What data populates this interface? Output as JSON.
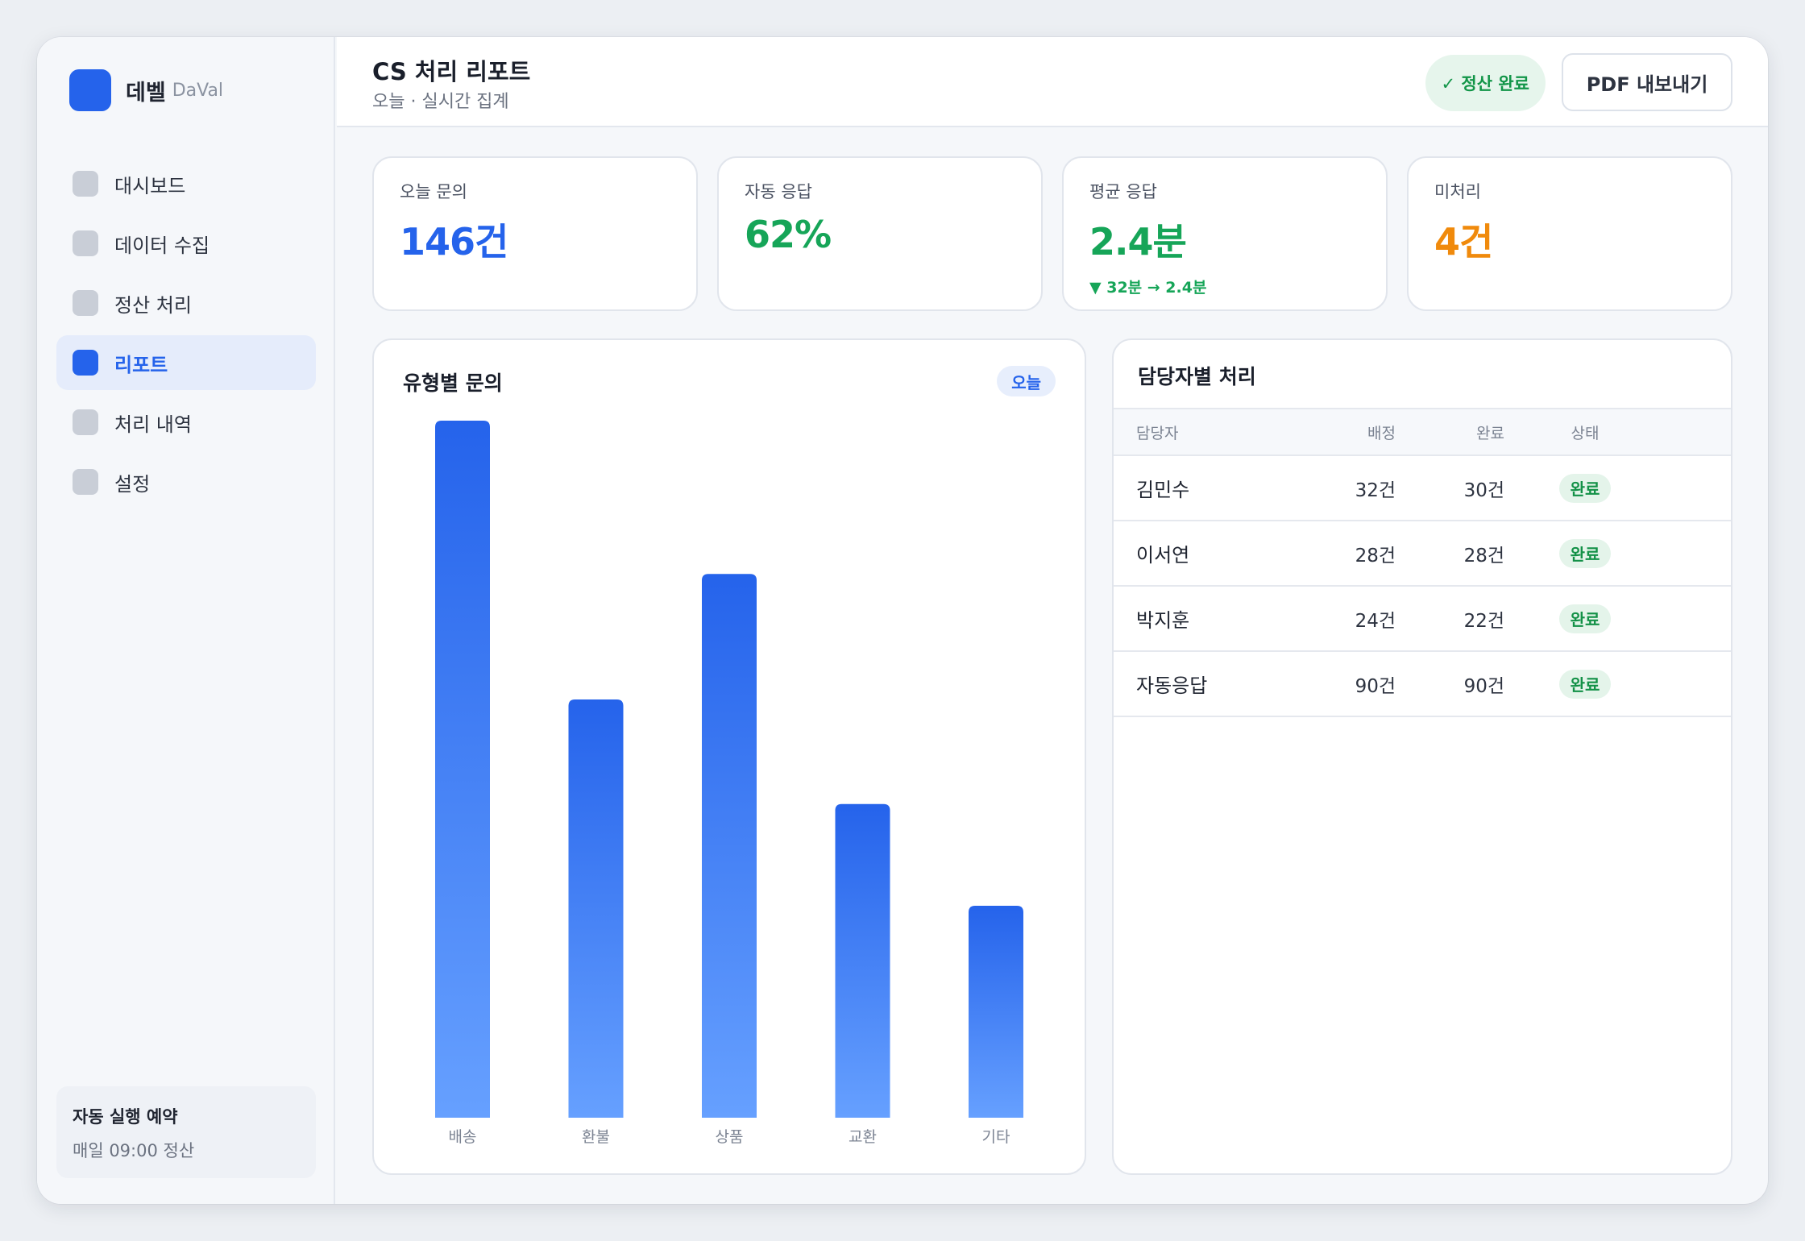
{
  "brand": {
    "name": "데벨",
    "sub": "DaVal"
  },
  "sidebar": {
    "items": [
      {
        "label": "대시보드",
        "active": false
      },
      {
        "label": "데이터 수집",
        "active": false
      },
      {
        "label": "정산 처리",
        "active": false
      },
      {
        "label": "리포트",
        "active": true
      },
      {
        "label": "처리 내역",
        "active": false
      },
      {
        "label": "설정",
        "active": false
      }
    ],
    "schedule": {
      "title": "자동 실행 예약",
      "desc": "매일 09:00 정산"
    }
  },
  "header": {
    "title": "CS 처리 리포트",
    "subtitle": "오늘 · 실시간 집계",
    "status": "✓ 정산 완료",
    "export_label": "PDF 내보내기"
  },
  "kpis": [
    {
      "label": "오늘 문의",
      "value": "146건",
      "color": "#2563eb",
      "delta": ""
    },
    {
      "label": "자동 응답",
      "value": "62%",
      "color": "#16a558",
      "delta": ""
    },
    {
      "label": "평균 응답",
      "value": "2.4분",
      "color": "#16a558",
      "delta": "▼ 32분 → 2.4분"
    },
    {
      "label": "미처리",
      "value": "4건",
      "color": "#f08a0c",
      "delta": ""
    }
  ],
  "chart_panel": {
    "title": "유형별 문의",
    "chip": "오늘"
  },
  "chart_data": {
    "type": "bar",
    "title": "유형별 문의",
    "categories": [
      "배송",
      "환불",
      "상품",
      "교환",
      "기타"
    ],
    "values": [
      50,
      30,
      39,
      22.5,
      15.2
    ],
    "ylim": [
      0,
      50
    ],
    "grid": false,
    "colors": {
      "top": "#2563eb",
      "bottom": "#66a0ff"
    }
  },
  "table": {
    "title": "담당자별 처리",
    "headers": {
      "name": "담당자",
      "assigned": "배정",
      "done": "완료",
      "status": "상태"
    },
    "rows": [
      {
        "name": "김민수",
        "assigned": "32건",
        "done": "30건",
        "status": "완료"
      },
      {
        "name": "이서연",
        "assigned": "28건",
        "done": "28건",
        "status": "완료"
      },
      {
        "name": "박지훈",
        "assigned": "24건",
        "done": "22건",
        "status": "완료"
      },
      {
        "name": "자동응답",
        "assigned": "90건",
        "done": "90건",
        "status": "완료"
      }
    ]
  }
}
